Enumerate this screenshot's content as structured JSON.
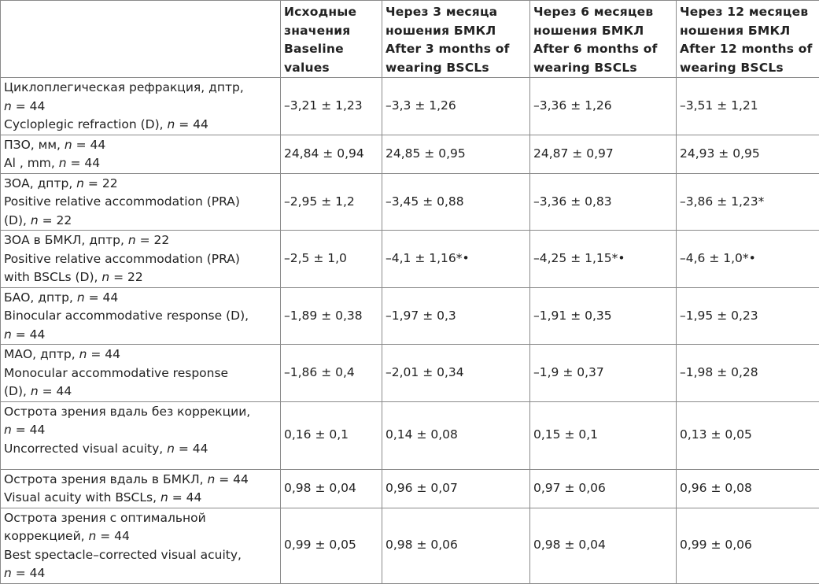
{
  "header": {
    "col0": "",
    "col1": [
      "Исходные",
      "значения",
      "Baseline",
      "values"
    ],
    "col2": [
      "Через 3 месяца",
      "ношения БМКЛ",
      "After 3 months of",
      "wearing BSCLs"
    ],
    "col3": [
      "Через 6 месяцев",
      "ношения БМКЛ",
      "After 6 months of",
      "wearing BSCLs"
    ],
    "col4": [
      "Через 12 месяцев",
      "ношения БМКЛ",
      "After 12 months of",
      "wearing BSCLs"
    ]
  },
  "rows": [
    {
      "label_lines": [
        [
          "Циклоплегическая рефракция, дптр,",
          ""
        ],
        [
          "",
          "n",
          " = 44"
        ],
        [
          "Cycloplegic refraction (D), ",
          "n",
          " = 44"
        ]
      ],
      "values": [
        "–3,21 ± 1,23",
        "–3,3 ± 1,26",
        "–3,36 ± 1,26",
        "–3,51 ± 1,21"
      ]
    },
    {
      "label_lines": [
        [
          "ПЗО, мм, ",
          "n",
          " = 44"
        ],
        [
          "Al , mm, ",
          "n",
          " = 44"
        ]
      ],
      "values": [
        "24,84 ± 0,94",
        "24,85 ± 0,95",
        "24,87 ± 0,97",
        "24,93 ± 0,95"
      ]
    },
    {
      "label_lines": [
        [
          "ЗОА, дптр, ",
          "n",
          " = 22"
        ],
        [
          "Positive relative accommodation (PRA)",
          "",
          ""
        ],
        [
          "(D), ",
          "n",
          " = 22"
        ]
      ],
      "values": [
        "–2,95 ± 1,2",
        "–3,45 ± 0,88",
        "–3,36 ± 0,83",
        "–3,86 ± 1,23*"
      ]
    },
    {
      "label_lines": [
        [
          "ЗОА в БМКЛ, дптр, ",
          "n",
          " = 22"
        ],
        [
          "Positive relative accommodation (PRA)",
          "",
          ""
        ],
        [
          "with BSCLs (D), ",
          "n",
          " = 22"
        ]
      ],
      "values": [
        "–2,5 ± 1,0",
        "–4,1 ± 1,16*•",
        "–4,25 ± 1,15*•",
        "–4,6 ± 1,0*•"
      ]
    },
    {
      "label_lines": [
        [
          "БАО, дптр, ",
          "n",
          " = 44"
        ],
        [
          "Binocular accommodative response (D),",
          "",
          ""
        ],
        [
          "",
          "n",
          " = 44"
        ]
      ],
      "values": [
        "–1,89 ± 0,38",
        "–1,97 ± 0,3",
        "–1,91 ± 0,35",
        "–1,95 ± 0,23"
      ]
    },
    {
      "label_lines": [
        [
          "МАО, дптр, ",
          "n",
          " = 44"
        ],
        [
          "Monocular accommodative response",
          "",
          ""
        ],
        [
          "(D), ",
          "n",
          " = 44"
        ]
      ],
      "values": [
        "–1,86 ± 0,4",
        "–2,01 ± 0,34",
        "–1,9 ± 0,37",
        "–1,98 ± 0,28"
      ]
    },
    {
      "label_lines": [
        [
          "Острота зрения вдаль без коррекции,",
          "",
          ""
        ],
        [
          "",
          "n",
          " = 44"
        ],
        [
          "Uncorrected visual acuity, ",
          "n",
          " = 44"
        ]
      ],
      "values": [
        "0,16 ± 0,1",
        "0,14 ± 0,08",
        "0,15 ± 0,1",
        "0,13 ± 0,05"
      ]
    },
    {
      "label_lines": [
        [
          "Острота зрения вдаль в БМКЛ, ",
          "n",
          " = 44"
        ],
        [
          "Visual acuity with BSCLs, ",
          "n",
          " = 44"
        ]
      ],
      "values": [
        "0,98 ± 0,04",
        "0,96 ± 0,07",
        "0,97 ± 0,06",
        "0,96 ± 0,08"
      ]
    },
    {
      "label_lines": [
        [
          "Острота зрения с оптимальной",
          "",
          ""
        ],
        [
          "коррекцией, ",
          "n",
          " = 44"
        ],
        [
          "Best spectacle–corrected visual acuity,",
          "",
          ""
        ],
        [
          "",
          "n",
          " = 44"
        ]
      ],
      "values": [
        "0,99 ± 0,05",
        "0,98 ± 0,06",
        "0,98 ± 0,04",
        "0,99 ± 0,06"
      ]
    }
  ]
}
